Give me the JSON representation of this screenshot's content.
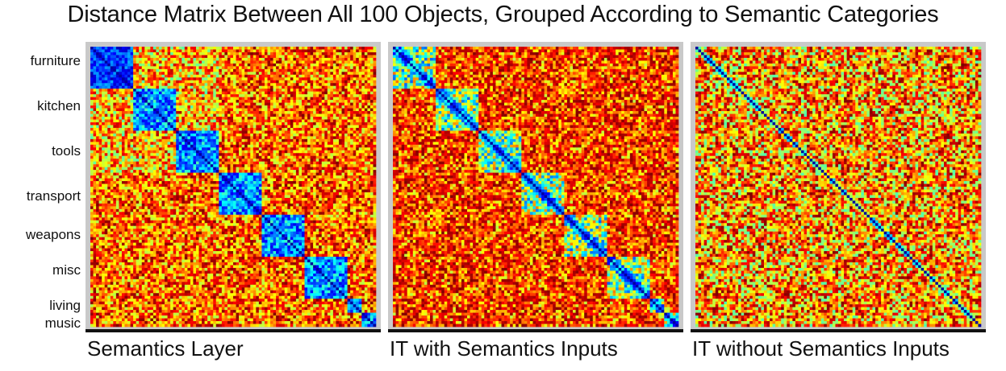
{
  "title": "Distance Matrix Between All 100 Objects, Grouped According to Semantic Categories",
  "chart_data": {
    "type": "heatmap",
    "n_objects": 100,
    "colormap": "jet",
    "colormap_range": [
      "low distance (blue)",
      "high distance (dark red)"
    ],
    "row_category_labels": [
      "furniture",
      "kitchen",
      "tools",
      "transport",
      "weapons",
      "misc",
      "living",
      "music"
    ],
    "category_sizes": [
      15,
      15,
      15,
      15,
      15,
      15,
      5,
      5
    ],
    "panels": [
      {
        "id": "semantics",
        "title": "Semantics Layer",
        "structure": "strong category blocks along diagonal"
      },
      {
        "id": "it_with",
        "title": "IT with Semantics Inputs",
        "structure": "moderate category blocks along diagonal"
      },
      {
        "id": "it_without",
        "title": "IT without Semantics Inputs",
        "structure": "diagonal only, no category blocks"
      }
    ]
  }
}
